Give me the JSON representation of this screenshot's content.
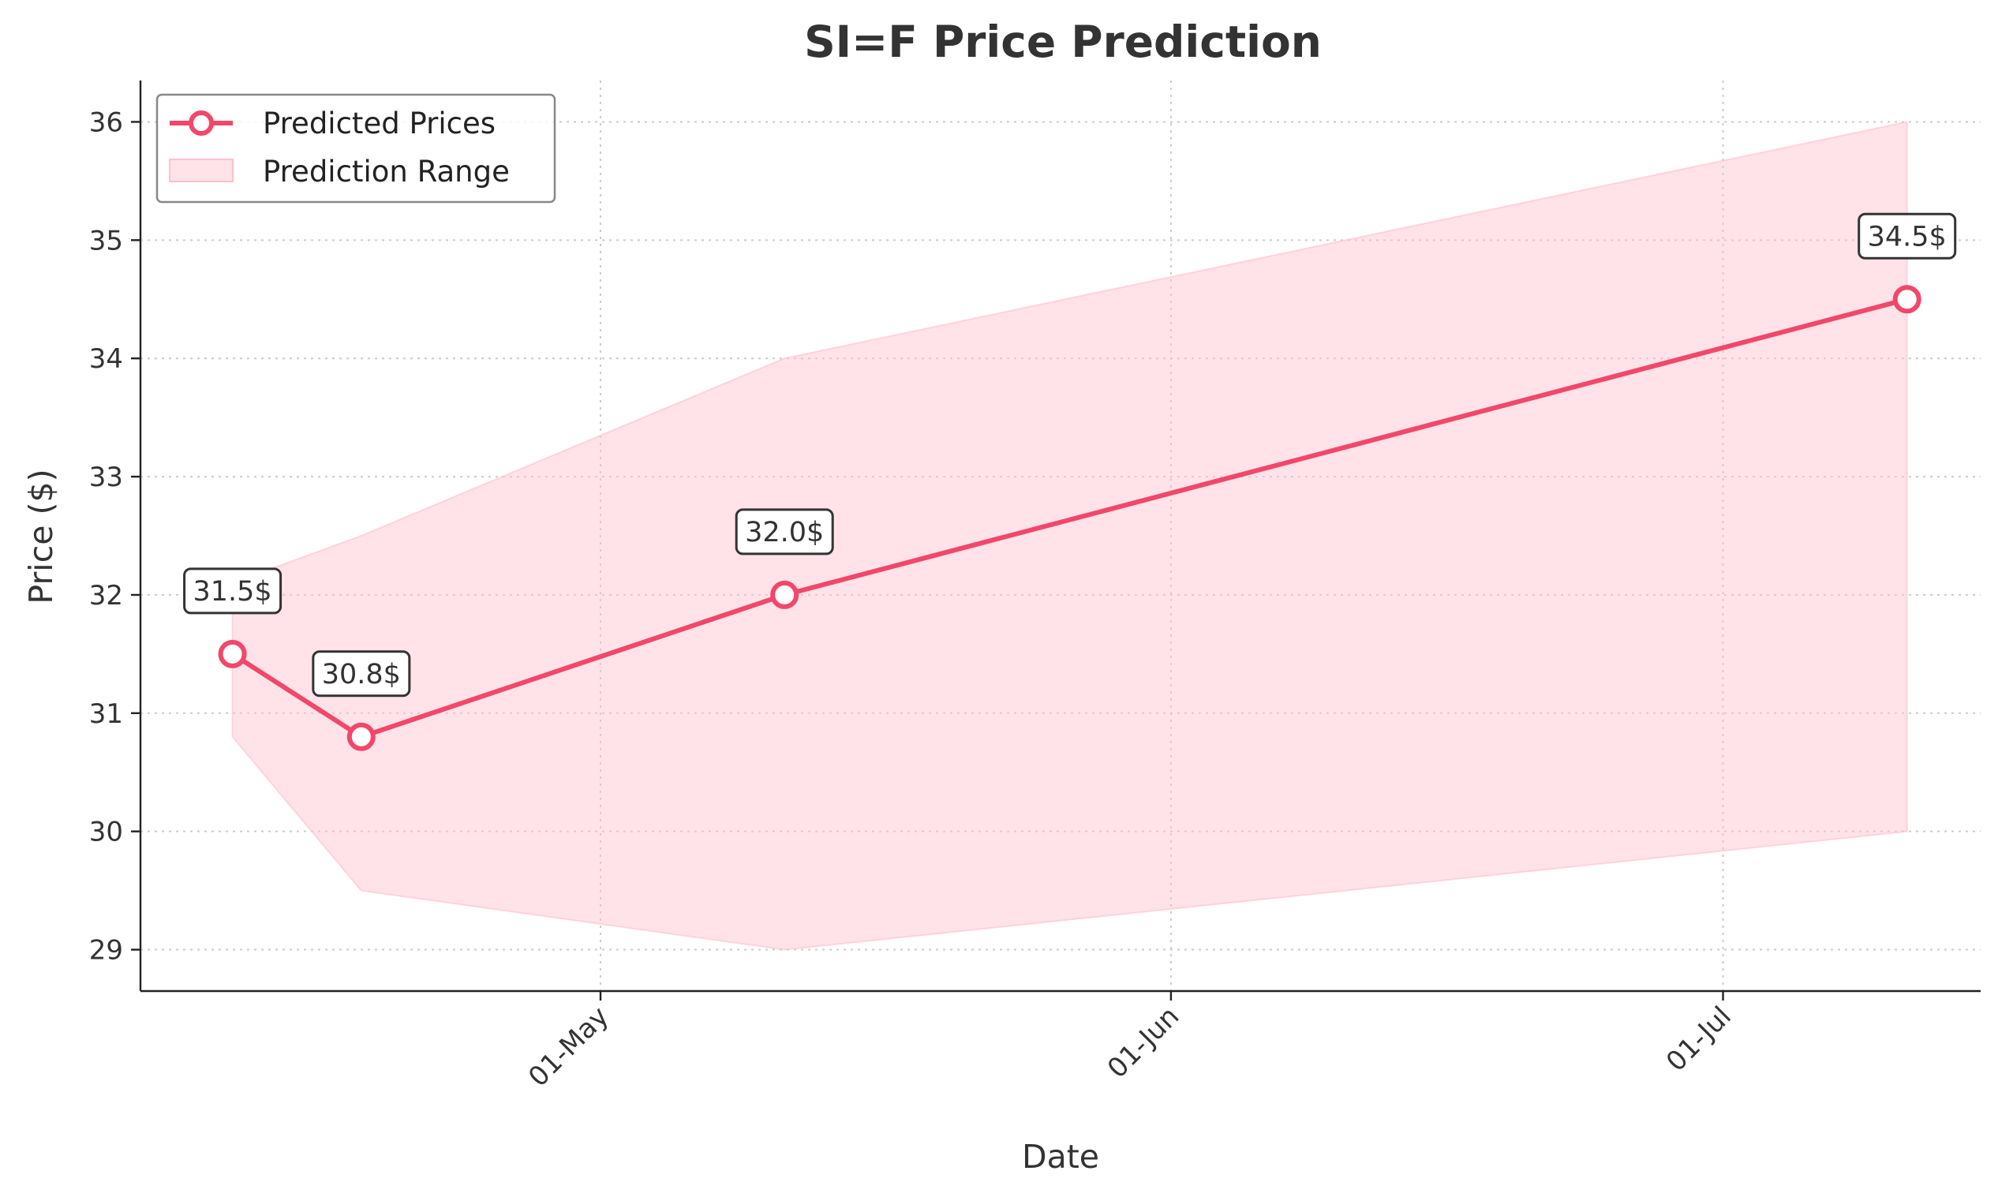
{
  "chart_data": {
    "type": "line",
    "title": "SI=F Price Prediction",
    "xlabel": "Date",
    "ylabel": "Price ($)",
    "x_ticks": [
      {
        "date": "2024-05-01",
        "label": "01-May"
      },
      {
        "date": "2024-06-01",
        "label": "01-Jun"
      },
      {
        "date": "2024-07-01",
        "label": "01-Jul"
      }
    ],
    "y_ticks": [
      29,
      30,
      31,
      32,
      33,
      34,
      35,
      36
    ],
    "xlim": [
      "2024-04-06",
      "2024-07-15"
    ],
    "ylim": [
      28.65,
      36.35
    ],
    "grid": true,
    "legend_position": "top-left",
    "series": [
      {
        "name": "Predicted Prices",
        "color": "#f2476a",
        "x": [
          "2024-04-11",
          "2024-04-18",
          "2024-05-11",
          "2024-07-11"
        ],
        "values": [
          31.5,
          30.8,
          32.0,
          34.5
        ],
        "point_labels": [
          "31.5$",
          "30.8$",
          "32.0$",
          "34.5$"
        ]
      }
    ],
    "range": {
      "name": "Prediction Range",
      "color": "#ffc0cb",
      "x": [
        "2024-04-11",
        "2024-04-18",
        "2024-05-11",
        "2024-07-11"
      ],
      "lower": [
        30.8,
        29.5,
        29.0,
        30.0
      ],
      "upper": [
        32.1,
        32.5,
        34.0,
        36.0
      ]
    }
  }
}
